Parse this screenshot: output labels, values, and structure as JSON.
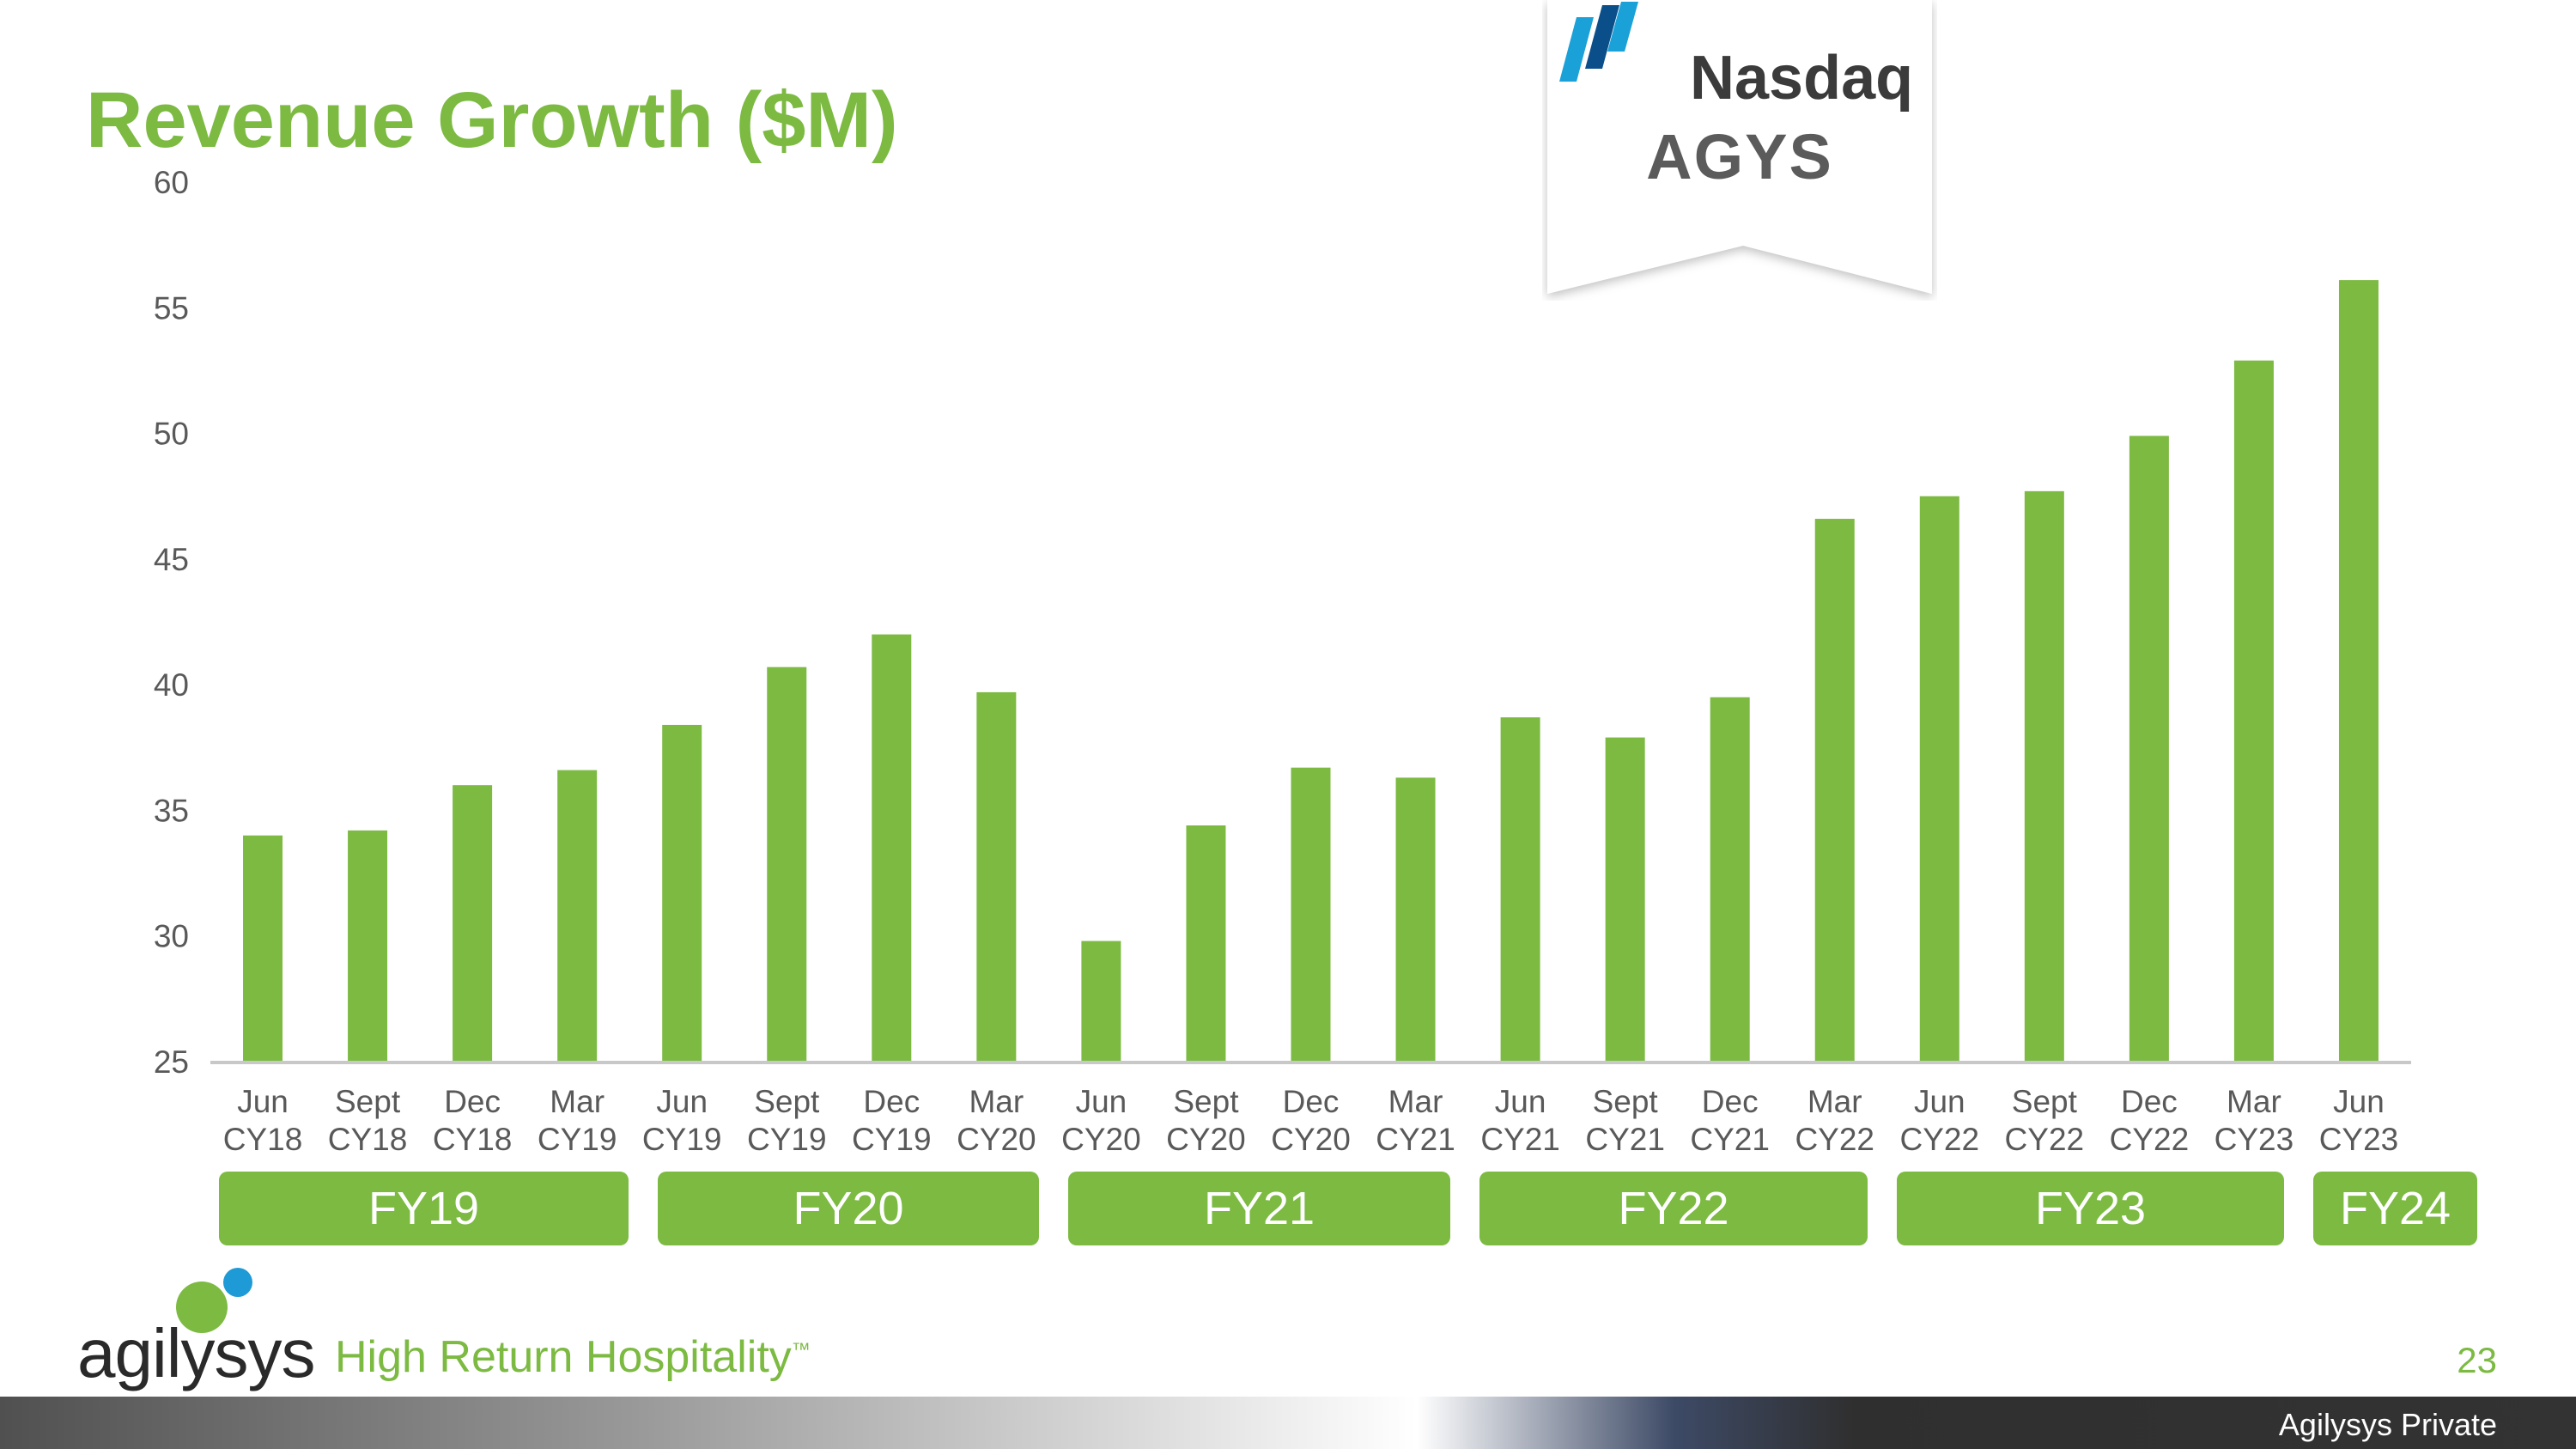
{
  "slide": {
    "title": "Revenue Growth ($M)",
    "page_number": "23",
    "footer_label": "Agilysys Private"
  },
  "badge": {
    "exchange": "Nasdaq",
    "ticker": "AGYS"
  },
  "brand": {
    "logo_text": "agilysys",
    "tagline": "High Return Hospitality",
    "tagline_mark": "™",
    "accent_color": "#7cba42",
    "dot_color": "#1e9ad6"
  },
  "fiscal_years": [
    "FY19",
    "FY20",
    "FY21",
    "FY22",
    "FY23",
    "FY24"
  ],
  "chart_data": {
    "type": "bar",
    "title": "Revenue Growth ($M)",
    "categories": [
      [
        "Jun",
        "CY18"
      ],
      [
        "Sept",
        "CY18"
      ],
      [
        "Dec",
        "CY18"
      ],
      [
        "Mar",
        "CY19"
      ],
      [
        "Jun",
        "CY19"
      ],
      [
        "Sept",
        "CY19"
      ],
      [
        "Dec",
        "CY19"
      ],
      [
        "Mar",
        "CY20"
      ],
      [
        "Jun",
        "CY20"
      ],
      [
        "Sept",
        "CY20"
      ],
      [
        "Dec",
        "CY20"
      ],
      [
        "Mar",
        "CY21"
      ],
      [
        "Jun",
        "CY21"
      ],
      [
        "Sept",
        "CY21"
      ],
      [
        "Dec",
        "CY21"
      ],
      [
        "Mar",
        "CY22"
      ],
      [
        "Jun",
        "CY22"
      ],
      [
        "Sept",
        "CY22"
      ],
      [
        "Dec",
        "CY22"
      ],
      [
        "Mar",
        "CY23"
      ],
      [
        "Jun",
        "CY23"
      ]
    ],
    "values": [
      34.0,
      34.2,
      36.0,
      36.6,
      38.4,
      40.7,
      42.0,
      39.7,
      29.8,
      34.4,
      36.7,
      36.3,
      38.7,
      37.9,
      39.5,
      46.6,
      47.5,
      47.7,
      49.9,
      52.9,
      56.1
    ],
    "ylim": [
      25,
      60
    ],
    "yticks": [
      "25",
      "30",
      "35",
      "40",
      "45",
      "50",
      "55",
      "60"
    ],
    "bar_color": "#7cba42",
    "grid": false,
    "legend": "none"
  }
}
